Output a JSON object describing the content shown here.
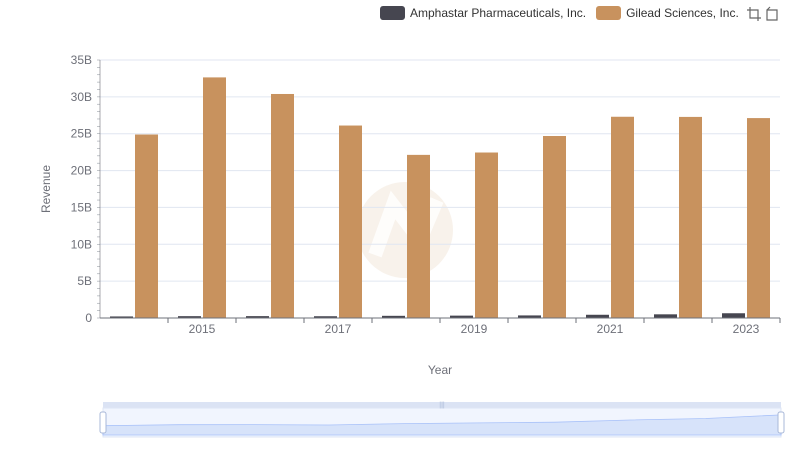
{
  "legend": [
    {
      "name": "Amphastar Pharmaceuticals, Inc.",
      "color": "#464650"
    },
    {
      "name": "Gilead Sciences, Inc.",
      "color": "#c8925e"
    }
  ],
  "toolbox": {
    "zoom_icon": "crop-zoom-icon",
    "restore_icon": "restore-icon"
  },
  "chart_data": {
    "type": "bar",
    "title": "",
    "xlabel": "Year",
    "ylabel": "Revenue",
    "ylim": [
      0,
      35000000000
    ],
    "yticks": [
      "0",
      "5B",
      "10B",
      "15B",
      "20B",
      "25B",
      "30B",
      "35B"
    ],
    "categories": [
      "2014",
      "2015",
      "2016",
      "2017",
      "2018",
      "2019",
      "2020",
      "2021",
      "2022",
      "2023"
    ],
    "xtick_labels": [
      "2015",
      "2017",
      "2019",
      "2021",
      "2023"
    ],
    "series": [
      {
        "name": "Amphastar Pharmaceuticals, Inc.",
        "values": [
          210000000,
          250000000,
          255000000,
          240000000,
          295000000,
          322000000,
          350000000,
          438000000,
          499000000,
          644000000
        ]
      },
      {
        "name": "Gilead Sciences, Inc.",
        "values": [
          24890000000,
          32640000000,
          30390000000,
          26110000000,
          22130000000,
          22450000000,
          24690000000,
          27300000000,
          27280000000,
          27120000000
        ]
      }
    ],
    "grid": true,
    "legend_position": "top-right",
    "datazoom": {
      "type": "slider",
      "start_percent": 0,
      "end_percent": 100
    }
  }
}
